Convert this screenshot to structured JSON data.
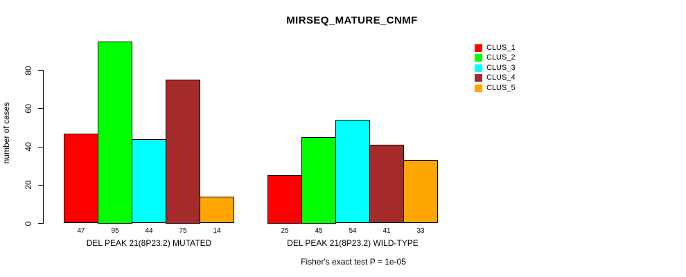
{
  "chart_data": {
    "type": "bar",
    "title": "MIRSEQ_MATURE_CNMF",
    "ylabel": "number of cases",
    "xlabel": "",
    "ylim": [
      0,
      95
    ],
    "yticks": [
      0,
      20,
      40,
      60,
      80
    ],
    "grid": false,
    "legend_position": "right",
    "bar_value_labels_shown": true,
    "categories": [
      "DEL PEAK 21(8P23.2) MUTATED",
      "DEL PEAK 21(8P23.2) WILD-TYPE"
    ],
    "series": [
      {
        "name": "CLUS_1",
        "color": "#ff0000",
        "values": [
          47,
          25
        ]
      },
      {
        "name": "CLUS_2",
        "color": "#00ff00",
        "values": [
          95,
          45
        ]
      },
      {
        "name": "CLUS_3",
        "color": "#00ffff",
        "values": [
          44,
          54
        ]
      },
      {
        "name": "CLUS_4",
        "color": "#a52a2a",
        "values": [
          75,
          41
        ]
      },
      {
        "name": "CLUS_5",
        "color": "#ffa500",
        "values": [
          14,
          33
        ]
      }
    ],
    "annotation": "Fisher's exact test P = 1e-05"
  }
}
